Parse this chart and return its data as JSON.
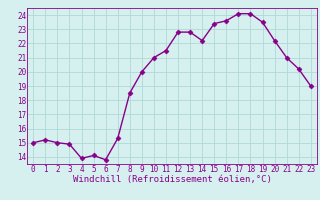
{
  "x": [
    0,
    1,
    2,
    3,
    4,
    5,
    6,
    7,
    8,
    9,
    10,
    11,
    12,
    13,
    14,
    15,
    16,
    17,
    18,
    19,
    20,
    21,
    22,
    23
  ],
  "y": [
    15.0,
    15.2,
    15.0,
    14.9,
    13.9,
    14.1,
    13.8,
    15.3,
    18.5,
    20.0,
    21.0,
    21.5,
    22.8,
    22.8,
    22.2,
    23.4,
    23.6,
    24.1,
    24.1,
    23.5,
    22.2,
    21.0,
    20.2,
    19.0
  ],
  "line_color": "#880088",
  "marker": "D",
  "markersize": 2.5,
  "linewidth": 1.0,
  "bg_color": "#d6f0f0",
  "grid_color": "#b0d8d8",
  "xlabel": "Windchill (Refroidissement éolien,°C)",
  "ylabel_ticks": [
    14,
    15,
    16,
    17,
    18,
    19,
    20,
    21,
    22,
    23,
    24
  ],
  "ylim": [
    13.5,
    24.5
  ],
  "xlim": [
    -0.5,
    23.5
  ],
  "xticks": [
    0,
    1,
    2,
    3,
    4,
    5,
    6,
    7,
    8,
    9,
    10,
    11,
    12,
    13,
    14,
    15,
    16,
    17,
    18,
    19,
    20,
    21,
    22,
    23
  ],
  "xlabel_fontsize": 6.5,
  "tick_fontsize": 5.5,
  "spine_color": "#880088"
}
